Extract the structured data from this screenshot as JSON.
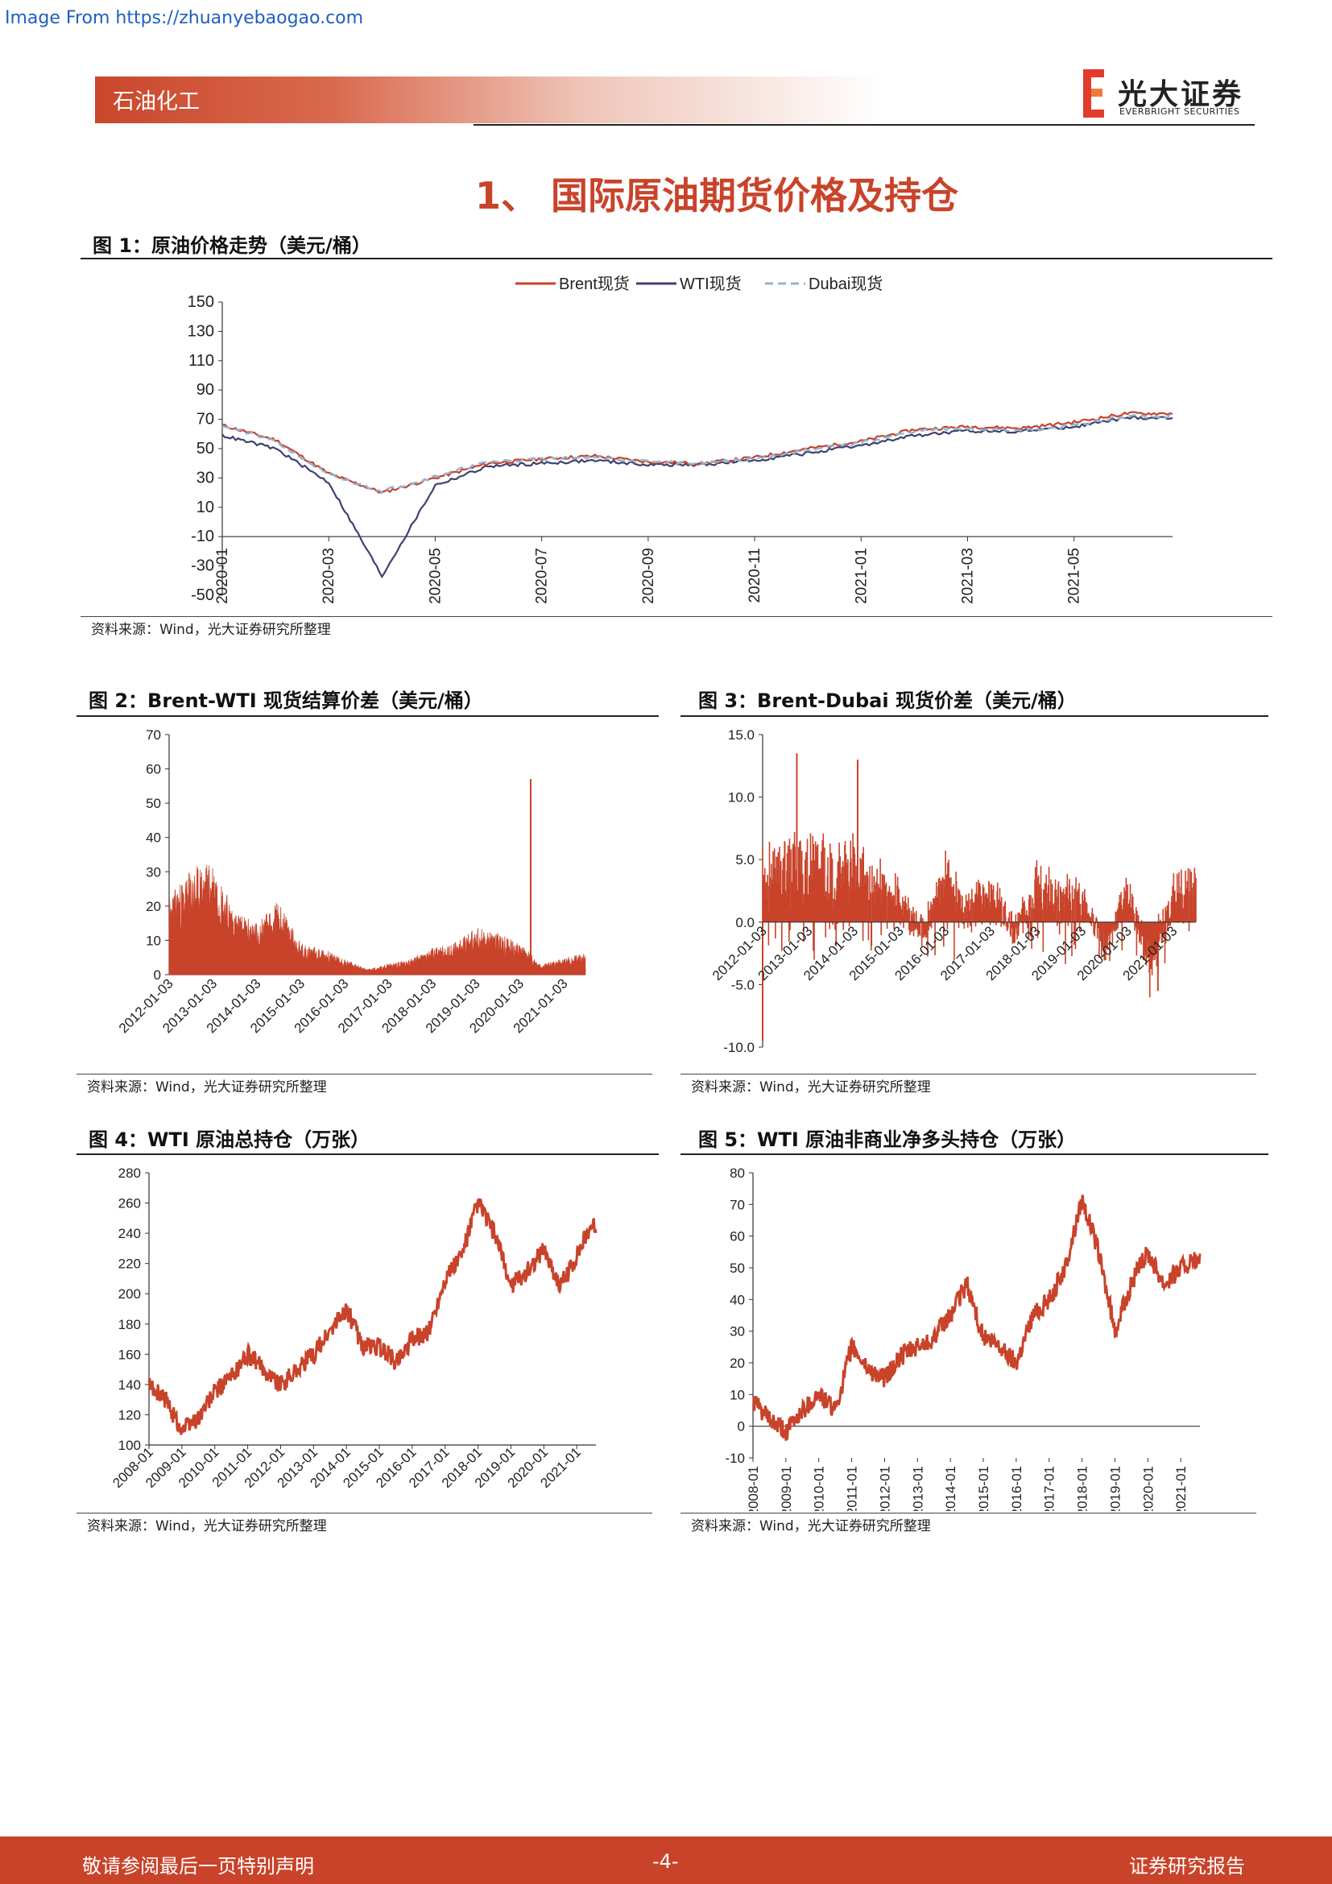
{
  "watermark": "Image From https://zhuanyebaogao.com",
  "header": {
    "category": "石油化工",
    "logo_cn": "光大证券",
    "logo_en": "EVERBRIGHT SECURITIES"
  },
  "section_title": "1、 国际原油期货价格及持仓",
  "figures": [
    {
      "title": "图 1：原油价格走势（美元/桶）",
      "source": "资料来源：Wind，光大证券研究所整理"
    },
    {
      "title": "图 2：Brent-WTI 现货结算价差（美元/桶）",
      "source": "资料来源：Wind，光大证券研究所整理"
    },
    {
      "title": "图 3：Brent-Dubai 现货价差（美元/桶）",
      "source": "资料来源：Wind，光大证券研究所整理"
    },
    {
      "title": "图 4：WTI 原油总持仓（万张）",
      "source": "资料来源：Wind，光大证券研究所整理"
    },
    {
      "title": "图 5：WTI 原油非商业净多头持仓（万张）",
      "source": "资料来源：Wind，光大证券研究所整理"
    }
  ],
  "footer": {
    "left": "敬请参阅最后一页特别声明",
    "center": "-4-",
    "right": "证券研究报告"
  },
  "colors": {
    "brand_red": "#c8432a",
    "brent": "#c8432a",
    "wti": "#3d4270",
    "dubai": "#8fb4d3"
  },
  "chart_data": [
    {
      "type": "line",
      "ylim": [
        -50,
        150
      ],
      "yticks": [
        150,
        130,
        110,
        90,
        70,
        50,
        30,
        10,
        -10,
        -30,
        -50
      ],
      "xticks": [
        "2020-01",
        "2020-03",
        "2020-05",
        "2020-07",
        "2020-09",
        "2020-11",
        "2021-01",
        "2021-03",
        "2021-05"
      ],
      "x": [
        "2020-01",
        "2020-02",
        "2020-03",
        "2020-04",
        "2020-05",
        "2020-06",
        "2020-07",
        "2020-08",
        "2020-09",
        "2020-10",
        "2020-11",
        "2020-12",
        "2021-01",
        "2021-02",
        "2021-03",
        "2021-04",
        "2021-05",
        "2021-06"
      ],
      "series": [
        {
          "name": "Brent现货",
          "values": [
            66,
            56,
            33,
            20,
            30,
            40,
            43,
            45,
            41,
            40,
            44,
            50,
            55,
            63,
            65,
            64,
            68,
            74
          ]
        },
        {
          "name": "WTI现货",
          "values": [
            59,
            50,
            27,
            -37,
            25,
            38,
            40,
            42,
            39,
            39,
            42,
            47,
            52,
            59,
            62,
            62,
            65,
            71
          ]
        },
        {
          "name": "Dubai现货",
          "values": [
            66,
            55,
            32,
            21,
            31,
            41,
            43,
            44,
            41,
            40,
            43,
            49,
            54,
            62,
            64,
            62,
            66,
            72
          ]
        }
      ],
      "legend": "top-center"
    },
    {
      "type": "area",
      "ylim": [
        0,
        70
      ],
      "yticks": [
        70,
        60,
        50,
        40,
        30,
        20,
        10,
        0
      ],
      "xticks": [
        "2012-01-03",
        "2013-01-03",
        "2014-01-03",
        "2015-01-03",
        "2016-01-03",
        "2017-01-03",
        "2018-01-03",
        "2019-01-03",
        "2020-01-03",
        "2021-01-03"
      ],
      "x": [
        "2012-01",
        "2012-07",
        "2013-01",
        "2013-07",
        "2014-01",
        "2014-07",
        "2015-01",
        "2015-07",
        "2016-01",
        "2016-07",
        "2017-01",
        "2017-07",
        "2018-01",
        "2018-07",
        "2019-01",
        "2019-07",
        "2020-01",
        "2020-04",
        "2020-07",
        "2021-01",
        "2021-06"
      ],
      "values": [
        15,
        20,
        22,
        12,
        10,
        14,
        6,
        5,
        3,
        1,
        2,
        3,
        5,
        6,
        9,
        8,
        6,
        57,
        2,
        3,
        4
      ]
    },
    {
      "type": "bar",
      "ylim": [
        -10,
        15
      ],
      "yticks": [
        "15.0",
        "10.0",
        "5.0",
        "0.0",
        "-5.0",
        "-10.0"
      ],
      "xticks": [
        "2012-01-03",
        "2013-01-03",
        "2014-01-03",
        "2015-01-03",
        "2016-01-03",
        "2017-01-03",
        "2018-01-03",
        "2019-01-03",
        "2020-01-03",
        "2021-01-03"
      ],
      "x": [
        "2012-01",
        "2012-07",
        "2013-01",
        "2013-07",
        "2014-01",
        "2014-07",
        "2015-01",
        "2015-07",
        "2016-01",
        "2016-07",
        "2017-01",
        "2017-07",
        "2018-01",
        "2018-07",
        "2019-01",
        "2019-07",
        "2020-01",
        "2020-07",
        "2021-01",
        "2021-06"
      ],
      "values": [
        4,
        13.5,
        5,
        4,
        13,
        3,
        2,
        -1,
        4,
        1,
        3,
        -1,
        3,
        2,
        2,
        -2,
        3,
        -4,
        2,
        3
      ]
    },
    {
      "type": "line",
      "ylim": [
        100,
        280
      ],
      "yticks": [
        280,
        260,
        240,
        220,
        200,
        180,
        160,
        140,
        120,
        100
      ],
      "xticks": [
        "2008-01",
        "2009-01",
        "2010-01",
        "2011-01",
        "2012-01",
        "2013-01",
        "2014-01",
        "2015-01",
        "2016-01",
        "2017-01",
        "2018-01",
        "2019-01",
        "2020-01",
        "2021-01"
      ],
      "x": [
        "2008-01",
        "2008-07",
        "2009-01",
        "2009-07",
        "2010-01",
        "2010-07",
        "2011-01",
        "2011-07",
        "2012-01",
        "2012-07",
        "2013-01",
        "2013-07",
        "2014-01",
        "2014-07",
        "2015-01",
        "2015-07",
        "2016-01",
        "2016-07",
        "2017-01",
        "2017-07",
        "2018-01",
        "2018-07",
        "2019-01",
        "2019-07",
        "2020-01",
        "2020-07",
        "2021-01",
        "2021-06"
      ],
      "values": [
        140,
        130,
        110,
        118,
        135,
        145,
        160,
        150,
        140,
        150,
        160,
        175,
        190,
        165,
        165,
        155,
        170,
        175,
        210,
        225,
        260,
        240,
        205,
        215,
        230,
        205,
        225,
        245
      ]
    },
    {
      "type": "line",
      "ylim": [
        -10,
        80
      ],
      "yticks": [
        80,
        70,
        60,
        50,
        40,
        30,
        20,
        10,
        0,
        -10
      ],
      "xticks": [
        "2008-01",
        "2009-01",
        "2010-01",
        "2011-01",
        "2012-01",
        "2013-01",
        "2014-01",
        "2015-01",
        "2016-01",
        "2017-01",
        "2018-01",
        "2019-01",
        "2020-01",
        "2021-01"
      ],
      "x": [
        "2008-01",
        "2008-07",
        "2009-01",
        "2009-07",
        "2010-01",
        "2010-07",
        "2011-01",
        "2011-07",
        "2012-01",
        "2012-07",
        "2013-01",
        "2013-07",
        "2014-01",
        "2014-07",
        "2015-01",
        "2015-07",
        "2016-01",
        "2016-07",
        "2017-01",
        "2017-07",
        "2018-01",
        "2018-07",
        "2019-01",
        "2019-07",
        "2020-01",
        "2020-07",
        "2021-01",
        "2021-06"
      ],
      "values": [
        8,
        2,
        -2,
        5,
        10,
        5,
        25,
        18,
        15,
        22,
        25,
        28,
        35,
        45,
        28,
        25,
        20,
        35,
        40,
        50,
        72,
        55,
        30,
        45,
        55,
        45,
        50,
        52
      ]
    }
  ]
}
